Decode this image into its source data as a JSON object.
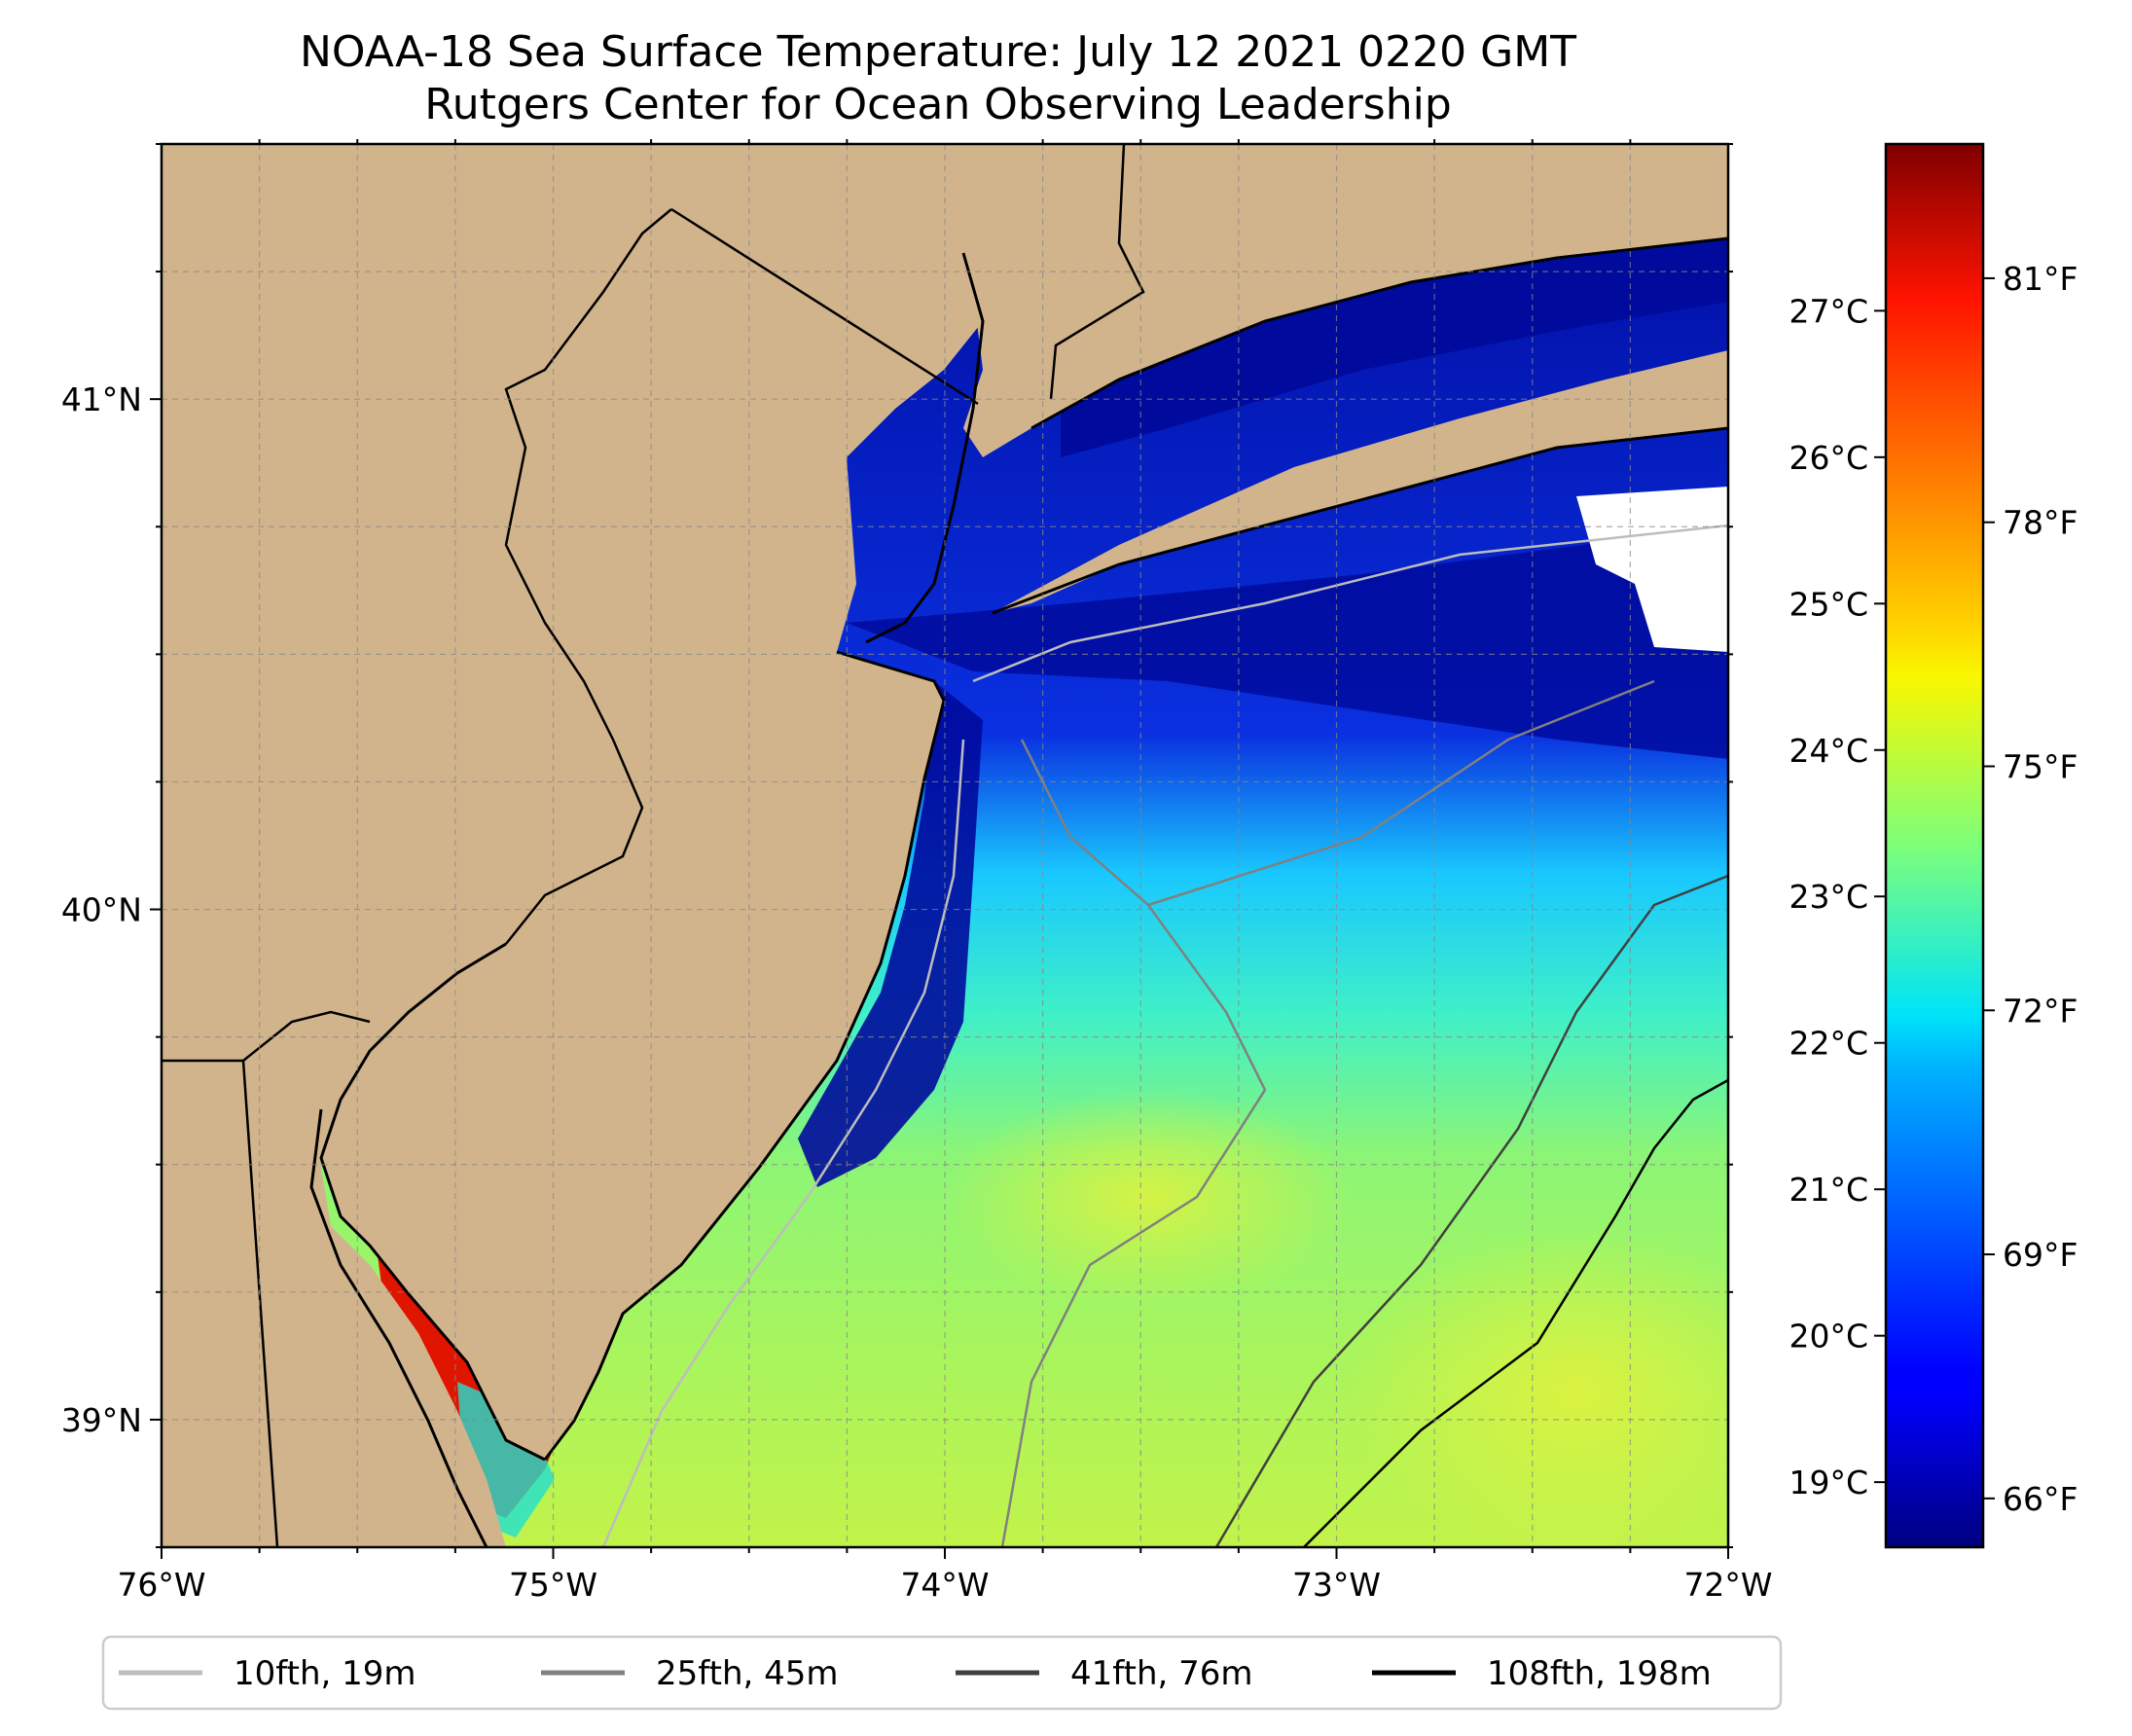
{
  "title": {
    "line1": "NOAA-18 Sea Surface Temperature: July 12 2021 0220 GMT",
    "line2": "Rutgers Center for Ocean Observing Leadership"
  },
  "map": {
    "extent": {
      "lon_min": -76.0,
      "lon_max": -72.0,
      "lat_min": 38.75,
      "lat_max": 41.5
    },
    "x_ticks": [
      {
        "value": -76,
        "label": "76°W"
      },
      {
        "value": -75,
        "label": "75°W"
      },
      {
        "value": -74,
        "label": "74°W"
      },
      {
        "value": -73,
        "label": "73°W"
      },
      {
        "value": -72,
        "label": "72°W"
      }
    ],
    "y_ticks": [
      {
        "value": 41,
        "label": "41°N"
      },
      {
        "value": 40,
        "label": "40°N"
      },
      {
        "value": 39,
        "label": "39°N"
      }
    ],
    "gridlines": true,
    "land_color": "#d2b48c",
    "no_data_color": "#ffffff"
  },
  "colorbar": {
    "colormap": "jet",
    "c_ticks": [
      {
        "value": 19,
        "label": "19°C"
      },
      {
        "value": 20,
        "label": "20°C"
      },
      {
        "value": 21,
        "label": "21°C"
      },
      {
        "value": 22,
        "label": "22°C"
      },
      {
        "value": 23,
        "label": "23°C"
      },
      {
        "value": 24,
        "label": "24°C"
      },
      {
        "value": 25,
        "label": "25°C"
      },
      {
        "value": 26,
        "label": "26°C"
      },
      {
        "value": 27,
        "label": "27°C"
      }
    ],
    "f_ticks": [
      {
        "value": 66,
        "label": "66°F"
      },
      {
        "value": 69,
        "label": "69°F"
      },
      {
        "value": 72,
        "label": "72°F"
      },
      {
        "value": 75,
        "label": "75°F"
      },
      {
        "value": 78,
        "label": "78°F"
      },
      {
        "value": 81,
        "label": "81°F"
      }
    ]
  },
  "legend": {
    "placement": "bottom",
    "items": [
      {
        "label": "10fth, 19m",
        "color": "#bdbdbd"
      },
      {
        "label": "25fth, 45m",
        "color": "#808080"
      },
      {
        "label": "41fth, 76m",
        "color": "#404040"
      },
      {
        "label": "108fth, 198m",
        "color": "#000000"
      }
    ]
  }
}
